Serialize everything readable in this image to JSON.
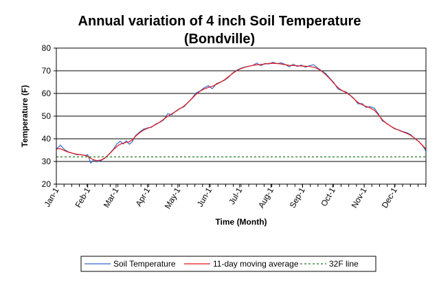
{
  "chart_data": {
    "type": "line",
    "title_line1": "Annual variation of 4 inch Soil Temperature",
    "title_line2": "(Bondville)",
    "xlabel": "Time (Month)",
    "ylabel": "Temperature (F)",
    "ylim": [
      20,
      80
    ],
    "yticks": [
      20,
      30,
      40,
      50,
      60,
      70,
      80
    ],
    "xlim": [
      0,
      365
    ],
    "x_ticks": [
      {
        "label": "Jan-1",
        "day": 0
      },
      {
        "label": "Feb-1",
        "day": 31
      },
      {
        "label": "Mar-1",
        "day": 59
      },
      {
        "label": "Apr-1",
        "day": 90
      },
      {
        "label": "May-1",
        "day": 120
      },
      {
        "label": "Jun-1",
        "day": 151
      },
      {
        "label": "Jul-1",
        "day": 181
      },
      {
        "label": "Aug-1",
        "day": 212
      },
      {
        "label": "Sep-1",
        "day": 243
      },
      {
        "label": "Oct-1",
        "day": 273
      },
      {
        "label": "Nov-1",
        "day": 304
      },
      {
        "label": "Dec-1",
        "day": 334
      }
    ],
    "grid": true,
    "legend_position": "bottom",
    "series": [
      {
        "name": "Soil Temperature",
        "color": "#3366cc",
        "style": "solid",
        "points": [
          [
            0,
            35.5
          ],
          [
            4,
            37.2
          ],
          [
            8,
            35.2
          ],
          [
            12,
            34.2
          ],
          [
            16,
            33.6
          ],
          [
            20,
            33.0
          ],
          [
            24,
            33.1
          ],
          [
            28,
            32.6
          ],
          [
            31,
            33.0
          ],
          [
            34,
            29.3
          ],
          [
            37,
            30.8
          ],
          [
            40,
            29.8
          ],
          [
            44,
            30.4
          ],
          [
            48,
            31.5
          ],
          [
            52,
            33.2
          ],
          [
            56,
            35.2
          ],
          [
            60,
            37.8
          ],
          [
            63,
            38.9
          ],
          [
            66,
            37.7
          ],
          [
            69,
            39.1
          ],
          [
            72,
            37.6
          ],
          [
            75,
            38.7
          ],
          [
            78,
            41.3
          ],
          [
            82,
            42.9
          ],
          [
            86,
            44.2
          ],
          [
            90,
            44.8
          ],
          [
            94,
            45.1
          ],
          [
            98,
            46.5
          ],
          [
            102,
            47.2
          ],
          [
            106,
            48.3
          ],
          [
            110,
            51.1
          ],
          [
            114,
            50.6
          ],
          [
            118,
            52.2
          ],
          [
            122,
            53.4
          ],
          [
            126,
            54.1
          ],
          [
            130,
            56.0
          ],
          [
            134,
            57.9
          ],
          [
            138,
            60.2
          ],
          [
            142,
            61.1
          ],
          [
            146,
            62.5
          ],
          [
            150,
            63.4
          ],
          [
            154,
            62.1
          ],
          [
            158,
            64.3
          ],
          [
            162,
            65.0
          ],
          [
            166,
            65.8
          ],
          [
            170,
            67.1
          ],
          [
            174,
            69.0
          ],
          [
            178,
            70.2
          ],
          [
            182,
            71.1
          ],
          [
            186,
            71.6
          ],
          [
            190,
            72.0
          ],
          [
            194,
            72.4
          ],
          [
            198,
            73.4
          ],
          [
            202,
            72.2
          ],
          [
            206,
            73.2
          ],
          [
            210,
            73.0
          ],
          [
            214,
            73.8
          ],
          [
            218,
            73.1
          ],
          [
            222,
            73.5
          ],
          [
            226,
            72.8
          ],
          [
            230,
            71.7
          ],
          [
            234,
            72.9
          ],
          [
            238,
            71.9
          ],
          [
            242,
            72.5
          ],
          [
            246,
            71.6
          ],
          [
            250,
            72.2
          ],
          [
            254,
            72.7
          ],
          [
            258,
            71.2
          ],
          [
            262,
            70.0
          ],
          [
            266,
            68.8
          ],
          [
            270,
            66.8
          ],
          [
            274,
            64.8
          ],
          [
            278,
            62.0
          ],
          [
            282,
            61.2
          ],
          [
            286,
            60.7
          ],
          [
            290,
            59.3
          ],
          [
            294,
            57.8
          ],
          [
            298,
            55.4
          ],
          [
            302,
            55.5
          ],
          [
            306,
            53.8
          ],
          [
            310,
            54.2
          ],
          [
            314,
            53.5
          ],
          [
            318,
            51.0
          ],
          [
            322,
            47.9
          ],
          [
            326,
            46.9
          ],
          [
            330,
            45.6
          ],
          [
            334,
            44.4
          ],
          [
            338,
            43.9
          ],
          [
            342,
            43.2
          ],
          [
            346,
            42.7
          ],
          [
            350,
            41.8
          ],
          [
            354,
            40.0
          ],
          [
            358,
            38.8
          ],
          [
            362,
            36.8
          ],
          [
            365,
            34.6
          ]
        ]
      },
      {
        "name": "11-day moving average",
        "color": "#e01010",
        "style": "solid",
        "points": [
          [
            0,
            35.5
          ],
          [
            4,
            35.6
          ],
          [
            8,
            34.8
          ],
          [
            12,
            34.1
          ],
          [
            16,
            33.6
          ],
          [
            20,
            33.2
          ],
          [
            24,
            33.0
          ],
          [
            28,
            32.7
          ],
          [
            31,
            32.3
          ],
          [
            34,
            31.4
          ],
          [
            37,
            30.7
          ],
          [
            40,
            30.4
          ],
          [
            44,
            30.6
          ],
          [
            48,
            31.6
          ],
          [
            52,
            33.1
          ],
          [
            56,
            35.0
          ],
          [
            60,
            36.7
          ],
          [
            63,
            37.6
          ],
          [
            66,
            38.1
          ],
          [
            69,
            38.4
          ],
          [
            72,
            38.7
          ],
          [
            75,
            39.5
          ],
          [
            78,
            41.0
          ],
          [
            82,
            42.6
          ],
          [
            86,
            43.8
          ],
          [
            90,
            44.6
          ],
          [
            94,
            45.3
          ],
          [
            98,
            46.2
          ],
          [
            102,
            47.3
          ],
          [
            106,
            48.6
          ],
          [
            110,
            49.9
          ],
          [
            114,
            51.0
          ],
          [
            118,
            52.1
          ],
          [
            122,
            53.3
          ],
          [
            126,
            54.4
          ],
          [
            130,
            56.0
          ],
          [
            134,
            57.8
          ],
          [
            138,
            59.6
          ],
          [
            142,
            61.0
          ],
          [
            146,
            62.0
          ],
          [
            150,
            62.6
          ],
          [
            154,
            63.2
          ],
          [
            158,
            64.0
          ],
          [
            162,
            64.9
          ],
          [
            166,
            66.0
          ],
          [
            170,
            67.4
          ],
          [
            174,
            68.8
          ],
          [
            178,
            70.0
          ],
          [
            182,
            70.9
          ],
          [
            186,
            71.5
          ],
          [
            190,
            72.0
          ],
          [
            194,
            72.4
          ],
          [
            198,
            72.6
          ],
          [
            202,
            72.8
          ],
          [
            206,
            73.0
          ],
          [
            210,
            73.2
          ],
          [
            214,
            73.3
          ],
          [
            218,
            73.2
          ],
          [
            222,
            73.0
          ],
          [
            226,
            72.7
          ],
          [
            230,
            72.4
          ],
          [
            234,
            72.3
          ],
          [
            238,
            72.2
          ],
          [
            242,
            72.1
          ],
          [
            246,
            72.0
          ],
          [
            250,
            71.9
          ],
          [
            254,
            71.6
          ],
          [
            258,
            70.9
          ],
          [
            262,
            69.8
          ],
          [
            266,
            68.3
          ],
          [
            270,
            66.5
          ],
          [
            274,
            64.5
          ],
          [
            278,
            62.6
          ],
          [
            282,
            61.3
          ],
          [
            286,
            60.4
          ],
          [
            290,
            59.2
          ],
          [
            294,
            57.6
          ],
          [
            298,
            56.0
          ],
          [
            302,
            55.0
          ],
          [
            306,
            54.3
          ],
          [
            310,
            53.6
          ],
          [
            314,
            52.6
          ],
          [
            318,
            50.6
          ],
          [
            322,
            48.4
          ],
          [
            326,
            46.8
          ],
          [
            330,
            45.6
          ],
          [
            334,
            44.6
          ],
          [
            338,
            43.8
          ],
          [
            342,
            43.1
          ],
          [
            346,
            42.4
          ],
          [
            350,
            41.5
          ],
          [
            354,
            40.2
          ],
          [
            358,
            38.7
          ],
          [
            362,
            36.9
          ],
          [
            365,
            35.5
          ]
        ]
      },
      {
        "name": "32F line",
        "color": "#1a7a1a",
        "style": "dashed",
        "points": [
          [
            0,
            32
          ],
          [
            365,
            32
          ]
        ]
      }
    ]
  }
}
